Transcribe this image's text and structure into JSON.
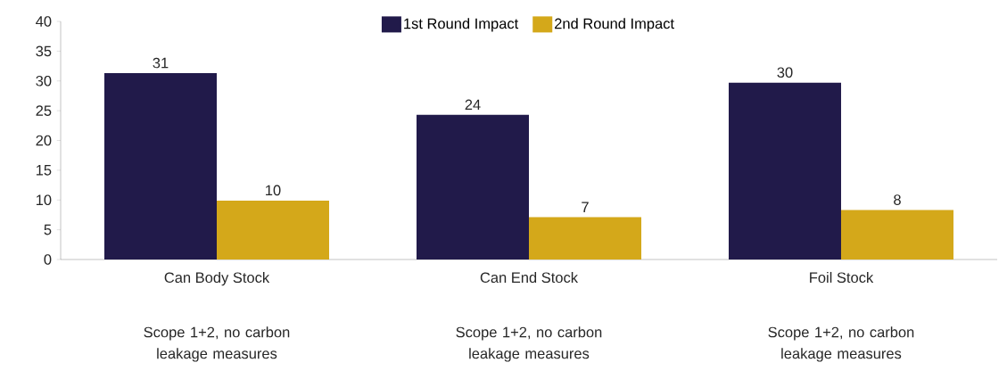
{
  "chart_data": {
    "type": "bar",
    "categories": [
      "Can Body Stock",
      "Can End Stock",
      "Foil Stock"
    ],
    "series": [
      {
        "name": "1st Round Impact",
        "color": "#211a4a",
        "values": [
          31.3,
          24.3,
          29.7
        ],
        "value_labels": [
          "31",
          "24",
          "30"
        ]
      },
      {
        "name": "2nd Round Impact",
        "color": "#d4a81a",
        "values": [
          9.9,
          7.1,
          8.3
        ],
        "value_labels": [
          "10",
          "7",
          "8"
        ]
      }
    ],
    "ylim": [
      0,
      40
    ],
    "yticks": [
      0,
      5,
      10,
      15,
      20,
      25,
      30,
      35,
      40
    ],
    "legend": "top",
    "annotations": [
      "Scope 1+2, no carbon leakage measures",
      "Scope 1+2, no carbon leakage measures",
      "Scope 1+2, no carbon leakage measures"
    ]
  }
}
